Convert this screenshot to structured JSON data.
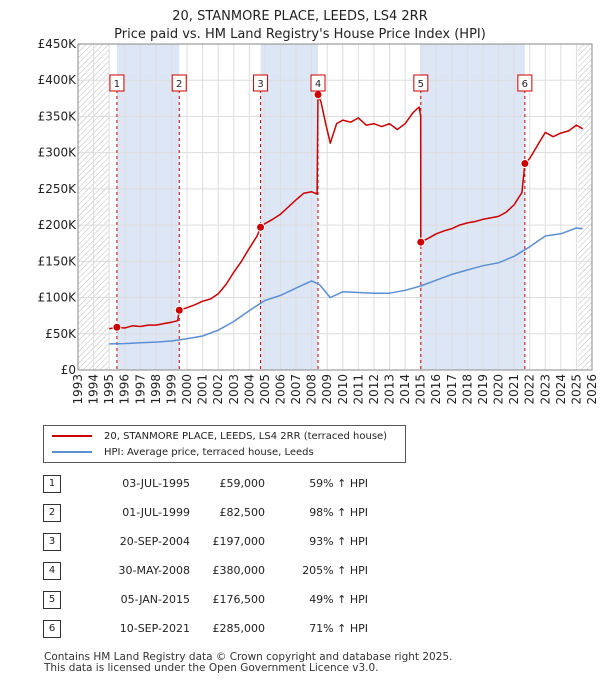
{
  "chart_data": {
    "type": "line",
    "title": "20, STANMORE PLACE, LEEDS, LS4 2RR",
    "subtitle": "Price paid vs. HM Land Registry's House Price Index (HPI)",
    "xlabel": "",
    "ylabel": "",
    "xlim": [
      1993,
      2026
    ],
    "ylim": [
      0,
      450000
    ],
    "x_ticks": [
      "1993",
      "1994",
      "1995",
      "1996",
      "1997",
      "1998",
      "1999",
      "2000",
      "2001",
      "2002",
      "2003",
      "2004",
      "2005",
      "2006",
      "2007",
      "2008",
      "2009",
      "2010",
      "2011",
      "2012",
      "2013",
      "2014",
      "2015",
      "2016",
      "2017",
      "2018",
      "2019",
      "2020",
      "2021",
      "2022",
      "2023",
      "2024",
      "2025",
      "2026"
    ],
    "y_ticks": [
      {
        "value": 0,
        "label": "£0"
      },
      {
        "value": 50000,
        "label": "£50K"
      },
      {
        "value": 100000,
        "label": "£100K"
      },
      {
        "value": 150000,
        "label": "£150K"
      },
      {
        "value": 200000,
        "label": "£200K"
      },
      {
        "value": 250000,
        "label": "£250K"
      },
      {
        "value": 300000,
        "label": "£300K"
      },
      {
        "value": 350000,
        "label": "£350K"
      },
      {
        "value": 400000,
        "label": "£400K"
      },
      {
        "value": 450000,
        "label": "£450K"
      }
    ],
    "grid": true,
    "series": [
      {
        "name": "20, STANMORE PLACE, LEEDS, LS4 2RR (terraced house)",
        "color": "#cc0000",
        "points": [
          [
            1995.0,
            57000
          ],
          [
            1995.5,
            59000
          ],
          [
            1996.0,
            58000
          ],
          [
            1996.5,
            61000
          ],
          [
            1997.0,
            60000
          ],
          [
            1997.5,
            62000
          ],
          [
            1998.0,
            62000
          ],
          [
            1998.5,
            64000
          ],
          [
            1999.0,
            66000
          ],
          [
            1999.4,
            68000
          ],
          [
            1999.5,
            82500
          ],
          [
            2000.0,
            86000
          ],
          [
            2000.5,
            90000
          ],
          [
            2001.0,
            95000
          ],
          [
            2001.5,
            98000
          ],
          [
            2002.0,
            105000
          ],
          [
            2002.5,
            118000
          ],
          [
            2003.0,
            135000
          ],
          [
            2003.5,
            150000
          ],
          [
            2004.0,
            168000
          ],
          [
            2004.5,
            185000
          ],
          [
            2004.72,
            197000
          ],
          [
            2005.0,
            202000
          ],
          [
            2005.5,
            208000
          ],
          [
            2006.0,
            215000
          ],
          [
            2006.5,
            225000
          ],
          [
            2007.0,
            235000
          ],
          [
            2007.5,
            244000
          ],
          [
            2008.0,
            246000
          ],
          [
            2008.35,
            243000
          ],
          [
            2008.41,
            380000
          ],
          [
            2008.6,
            370000
          ],
          [
            2008.9,
            340000
          ],
          [
            2009.2,
            313000
          ],
          [
            2009.6,
            340000
          ],
          [
            2010.0,
            345000
          ],
          [
            2010.5,
            342000
          ],
          [
            2011.0,
            348000
          ],
          [
            2011.5,
            338000
          ],
          [
            2012.0,
            340000
          ],
          [
            2012.5,
            336000
          ],
          [
            2013.0,
            340000
          ],
          [
            2013.5,
            332000
          ],
          [
            2014.0,
            340000
          ],
          [
            2014.5,
            355000
          ],
          [
            2014.9,
            363000
          ],
          [
            2015.0,
            350000
          ],
          [
            2015.01,
            176500
          ],
          [
            2015.5,
            182000
          ],
          [
            2016.0,
            188000
          ],
          [
            2016.5,
            192000
          ],
          [
            2017.0,
            195000
          ],
          [
            2017.5,
            200000
          ],
          [
            2018.0,
            203000
          ],
          [
            2018.5,
            205000
          ],
          [
            2019.0,
            208000
          ],
          [
            2019.5,
            210000
          ],
          [
            2020.0,
            212000
          ],
          [
            2020.5,
            218000
          ],
          [
            2021.0,
            228000
          ],
          [
            2021.5,
            245000
          ],
          [
            2021.69,
            285000
          ],
          [
            2022.0,
            292000
          ],
          [
            2022.5,
            310000
          ],
          [
            2023.0,
            328000
          ],
          [
            2023.5,
            322000
          ],
          [
            2024.0,
            327000
          ],
          [
            2024.5,
            330000
          ],
          [
            2025.0,
            338000
          ],
          [
            2025.4,
            333000
          ]
        ]
      },
      {
        "name": "HPI: Average price, terraced house, Leeds",
        "color": "#5b8fd4",
        "points": [
          [
            1995.0,
            36000
          ],
          [
            1996.0,
            36500
          ],
          [
            1997.0,
            37500
          ],
          [
            1998.0,
            38500
          ],
          [
            1999.0,
            40000
          ],
          [
            2000.0,
            43000
          ],
          [
            2001.0,
            47000
          ],
          [
            2002.0,
            55000
          ],
          [
            2003.0,
            67000
          ],
          [
            2004.0,
            82000
          ],
          [
            2005.0,
            96000
          ],
          [
            2006.0,
            103000
          ],
          [
            2007.0,
            113000
          ],
          [
            2008.0,
            123000
          ],
          [
            2008.5,
            118000
          ],
          [
            2009.2,
            100000
          ],
          [
            2010.0,
            108000
          ],
          [
            2011.0,
            107000
          ],
          [
            2012.0,
            106000
          ],
          [
            2013.0,
            106000
          ],
          [
            2014.0,
            110000
          ],
          [
            2015.0,
            116000
          ],
          [
            2016.0,
            124000
          ],
          [
            2017.0,
            132000
          ],
          [
            2018.0,
            138000
          ],
          [
            2019.0,
            144000
          ],
          [
            2020.0,
            148000
          ],
          [
            2021.0,
            157000
          ],
          [
            2022.0,
            170000
          ],
          [
            2023.0,
            185000
          ],
          [
            2024.0,
            188000
          ],
          [
            2025.0,
            196000
          ],
          [
            2025.4,
            195000
          ]
        ]
      }
    ],
    "sales": [
      {
        "num": "1",
        "x": 1995.5,
        "price": 59000
      },
      {
        "num": "2",
        "x": 1999.5,
        "price": 82500
      },
      {
        "num": "3",
        "x": 2004.72,
        "price": 197000
      },
      {
        "num": "4",
        "x": 2008.41,
        "price": 380000
      },
      {
        "num": "5",
        "x": 2015.01,
        "price": 176500
      },
      {
        "num": "6",
        "x": 2021.69,
        "price": 285000
      }
    ],
    "shaded_ranges": [
      [
        1995.5,
        1999.5
      ],
      [
        2004.72,
        2008.41
      ],
      [
        2015.01,
        2021.69
      ]
    ],
    "hatched_ranges": [
      [
        1993,
        1995.0
      ],
      [
        2025.1,
        2026
      ]
    ]
  },
  "legend": {
    "property_label": "20, STANMORE PLACE, LEEDS, LS4 2RR (terraced house)",
    "hpi_label": "HPI: Average price, terraced house, Leeds"
  },
  "sales_table": [
    {
      "num": "1",
      "date": "03-JUL-1995",
      "price": "£59,000",
      "hpi": "59% ↑ HPI"
    },
    {
      "num": "2",
      "date": "01-JUL-1999",
      "price": "£82,500",
      "hpi": "98% ↑ HPI"
    },
    {
      "num": "3",
      "date": "20-SEP-2004",
      "price": "£197,000",
      "hpi": "93% ↑ HPI"
    },
    {
      "num": "4",
      "date": "30-MAY-2008",
      "price": "£380,000",
      "hpi": "205% ↑ HPI"
    },
    {
      "num": "5",
      "date": "05-JAN-2015",
      "price": "£176,500",
      "hpi": "49% ↑ HPI"
    },
    {
      "num": "6",
      "date": "10-SEP-2021",
      "price": "£285,000",
      "hpi": "71% ↑ HPI"
    }
  ],
  "footer": {
    "line1": "Contains HM Land Registry data © Crown copyright and database right 2025.",
    "line2": "This data is licensed under the Open Government Licence v3.0."
  }
}
